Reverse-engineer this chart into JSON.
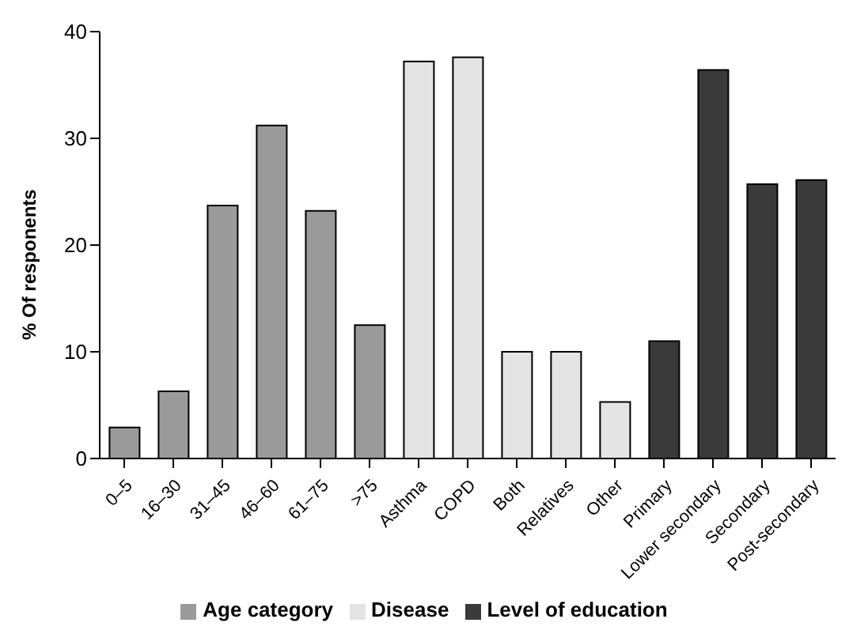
{
  "chart_data": {
    "type": "bar",
    "ylabel": "% Of responents",
    "categories": [
      "0–5",
      "16–30",
      "31–45",
      "46–60",
      "61–75",
      ">75",
      "Asthma",
      "COPD",
      "Both",
      "Relatives",
      "Other",
      "Primary",
      "Lower secondary",
      "Secondary",
      "Post-secondary"
    ],
    "series": [
      {
        "name": "Age category",
        "color": "#9a9a9a",
        "values": [
          2.9,
          6.3,
          23.7,
          31.2,
          23.2,
          12.5,
          null,
          null,
          null,
          null,
          null,
          null,
          null,
          null,
          null
        ]
      },
      {
        "name": "Disease",
        "color": "#e4e4e4",
        "values": [
          null,
          null,
          null,
          null,
          null,
          null,
          37.2,
          37.6,
          10.0,
          10.0,
          5.3,
          null,
          null,
          null,
          null
        ]
      },
      {
        "name": "Level of education",
        "color": "#3a3a3a",
        "values": [
          null,
          null,
          null,
          null,
          null,
          null,
          null,
          null,
          null,
          null,
          null,
          11.0,
          36.4,
          25.7,
          26.1
        ]
      }
    ],
    "ylim": [
      0,
      40
    ],
    "yticks": [
      0,
      10,
      20,
      30,
      40
    ],
    "grid": false,
    "legend": "bottom"
  }
}
